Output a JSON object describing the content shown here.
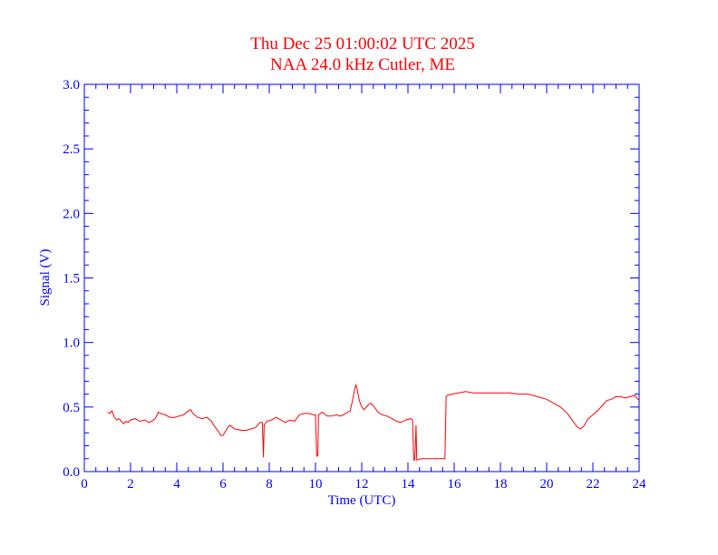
{
  "chart_data": {
    "type": "line",
    "title": "Thu Dec 25 01:00:02 UTC 2025",
    "subtitle": "NAA 24.0 kHz Cutler, ME",
    "xlabel": "Time (UTC)",
    "ylabel": "Signal (V)",
    "xlim": [
      0,
      24
    ],
    "ylim": [
      0.0,
      3.0
    ],
    "x_ticks": [
      0,
      2,
      4,
      6,
      8,
      10,
      12,
      14,
      16,
      18,
      20,
      22,
      24
    ],
    "x_tick_labels": [
      "0",
      "2",
      "4",
      "6",
      "8",
      "10",
      "12",
      "14",
      "16",
      "18",
      "20",
      "22",
      "24"
    ],
    "y_ticks": [
      0.0,
      0.5,
      1.0,
      1.5,
      2.0,
      2.5,
      3.0
    ],
    "y_tick_labels": [
      "0.0",
      "0.5",
      "1.0",
      "1.5",
      "2.0",
      "2.5",
      "3.0"
    ],
    "grid": false,
    "colors": {
      "title": "#ff0000",
      "axes": "#0000ff",
      "series": "#ff0000"
    },
    "series": [
      {
        "values_xy": [
          [
            1.0,
            0.46
          ],
          [
            1.1,
            0.45
          ],
          [
            1.2,
            0.47
          ],
          [
            1.3,
            0.42
          ],
          [
            1.4,
            0.4
          ],
          [
            1.5,
            0.41
          ],
          [
            1.6,
            0.39
          ],
          [
            1.7,
            0.37
          ],
          [
            1.8,
            0.39
          ],
          [
            1.9,
            0.38
          ],
          [
            2.0,
            0.4
          ],
          [
            2.2,
            0.41
          ],
          [
            2.4,
            0.39
          ],
          [
            2.6,
            0.4
          ],
          [
            2.8,
            0.38
          ],
          [
            3.0,
            0.4
          ],
          [
            3.1,
            0.42
          ],
          [
            3.2,
            0.46
          ],
          [
            3.3,
            0.45
          ],
          [
            3.5,
            0.44
          ],
          [
            3.7,
            0.42
          ],
          [
            3.9,
            0.42
          ],
          [
            4.1,
            0.43
          ],
          [
            4.3,
            0.44
          ],
          [
            4.5,
            0.47
          ],
          [
            4.6,
            0.48
          ],
          [
            4.7,
            0.45
          ],
          [
            4.9,
            0.42
          ],
          [
            5.1,
            0.41
          ],
          [
            5.3,
            0.42
          ],
          [
            5.5,
            0.39
          ],
          [
            5.6,
            0.36
          ],
          [
            5.8,
            0.31
          ],
          [
            5.9,
            0.28
          ],
          [
            6.0,
            0.28
          ],
          [
            6.2,
            0.34
          ],
          [
            6.3,
            0.36
          ],
          [
            6.5,
            0.33
          ],
          [
            6.8,
            0.32
          ],
          [
            7.0,
            0.32
          ],
          [
            7.2,
            0.33
          ],
          [
            7.4,
            0.34
          ],
          [
            7.6,
            0.38
          ],
          [
            7.7,
            0.38
          ],
          [
            7.75,
            0.11
          ],
          [
            7.78,
            0.36
          ],
          [
            7.9,
            0.39
          ],
          [
            8.1,
            0.4
          ],
          [
            8.3,
            0.42
          ],
          [
            8.5,
            0.4
          ],
          [
            8.7,
            0.38
          ],
          [
            8.9,
            0.4
          ],
          [
            9.1,
            0.39
          ],
          [
            9.3,
            0.44
          ],
          [
            9.5,
            0.45
          ],
          [
            9.7,
            0.45
          ],
          [
            9.9,
            0.44
          ],
          [
            10.0,
            0.44
          ],
          [
            10.05,
            0.12
          ],
          [
            10.1,
            0.12
          ],
          [
            10.13,
            0.44
          ],
          [
            10.3,
            0.46
          ],
          [
            10.5,
            0.43
          ],
          [
            10.7,
            0.43
          ],
          [
            10.9,
            0.44
          ],
          [
            11.1,
            0.43
          ],
          [
            11.3,
            0.45
          ],
          [
            11.5,
            0.47
          ],
          [
            11.6,
            0.55
          ],
          [
            11.7,
            0.64
          ],
          [
            11.75,
            0.67
          ],
          [
            11.8,
            0.64
          ],
          [
            11.9,
            0.55
          ],
          [
            12.0,
            0.5
          ],
          [
            12.1,
            0.48
          ],
          [
            12.3,
            0.52
          ],
          [
            12.4,
            0.53
          ],
          [
            12.5,
            0.51
          ],
          [
            12.7,
            0.46
          ],
          [
            12.9,
            0.44
          ],
          [
            13.1,
            0.43
          ],
          [
            13.3,
            0.41
          ],
          [
            13.5,
            0.39
          ],
          [
            13.7,
            0.38
          ],
          [
            13.9,
            0.4
          ],
          [
            14.1,
            0.41
          ],
          [
            14.2,
            0.4
          ],
          [
            14.25,
            0.09
          ],
          [
            14.3,
            0.09
          ],
          [
            14.35,
            0.36
          ],
          [
            14.38,
            0.09
          ],
          [
            14.6,
            0.1
          ],
          [
            14.9,
            0.1
          ],
          [
            15.2,
            0.1
          ],
          [
            15.5,
            0.1
          ],
          [
            15.6,
            0.1
          ],
          [
            15.65,
            0.58
          ],
          [
            15.7,
            0.59
          ],
          [
            15.9,
            0.6
          ],
          [
            16.2,
            0.61
          ],
          [
            16.5,
            0.62
          ],
          [
            16.8,
            0.61
          ],
          [
            17.2,
            0.61
          ],
          [
            17.6,
            0.61
          ],
          [
            18.0,
            0.61
          ],
          [
            18.4,
            0.61
          ],
          [
            18.8,
            0.6
          ],
          [
            19.2,
            0.6
          ],
          [
            19.6,
            0.58
          ],
          [
            20.0,
            0.56
          ],
          [
            20.3,
            0.53
          ],
          [
            20.6,
            0.5
          ],
          [
            20.9,
            0.45
          ],
          [
            21.1,
            0.4
          ],
          [
            21.3,
            0.35
          ],
          [
            21.45,
            0.33
          ],
          [
            21.6,
            0.35
          ],
          [
            21.8,
            0.41
          ],
          [
            22.0,
            0.44
          ],
          [
            22.2,
            0.47
          ],
          [
            22.4,
            0.51
          ],
          [
            22.6,
            0.55
          ],
          [
            22.8,
            0.56
          ],
          [
            23.0,
            0.58
          ],
          [
            23.2,
            0.58
          ],
          [
            23.4,
            0.57
          ],
          [
            23.6,
            0.58
          ],
          [
            23.8,
            0.59
          ],
          [
            24.0,
            0.55
          ]
        ]
      }
    ]
  }
}
